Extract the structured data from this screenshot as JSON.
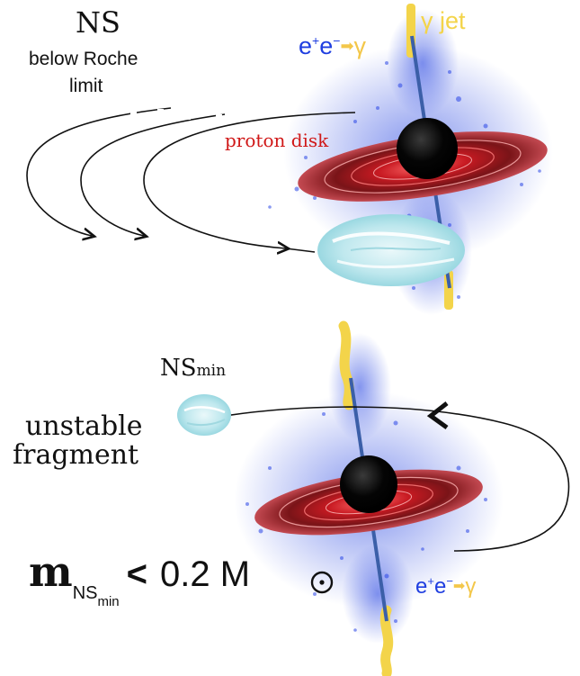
{
  "top": {
    "ns_title": "NS",
    "ns_subtitle_line1": "below Roche",
    "ns_subtitle_line2": "limit",
    "pair_label": {
      "e1": "e",
      "s1": "+",
      "e2": "e",
      "s2": "−",
      "gamma": "γ"
    },
    "jet_label": "γ jet",
    "disk_label": "proton disk"
  },
  "bottom": {
    "ns_min": {
      "base": "NS",
      "sub": "min"
    },
    "fragment_line1": "unstable",
    "fragment_line2": "fragment",
    "mass": {
      "m": "m",
      "sub": "NS",
      "subsub": "min",
      "rel": "<",
      "value": "0.2 M"
    },
    "pair_label": {
      "e1": "e",
      "s1": "+",
      "e2": "e",
      "s2": "−",
      "gamma": "γ"
    }
  },
  "colors": {
    "pair_blue": "#1f3ee0",
    "jet_yellow": "#f3d44a",
    "disk_red": "#b5141c",
    "proton_label": "#d01818",
    "ice_blue": "#bfe8ee"
  }
}
